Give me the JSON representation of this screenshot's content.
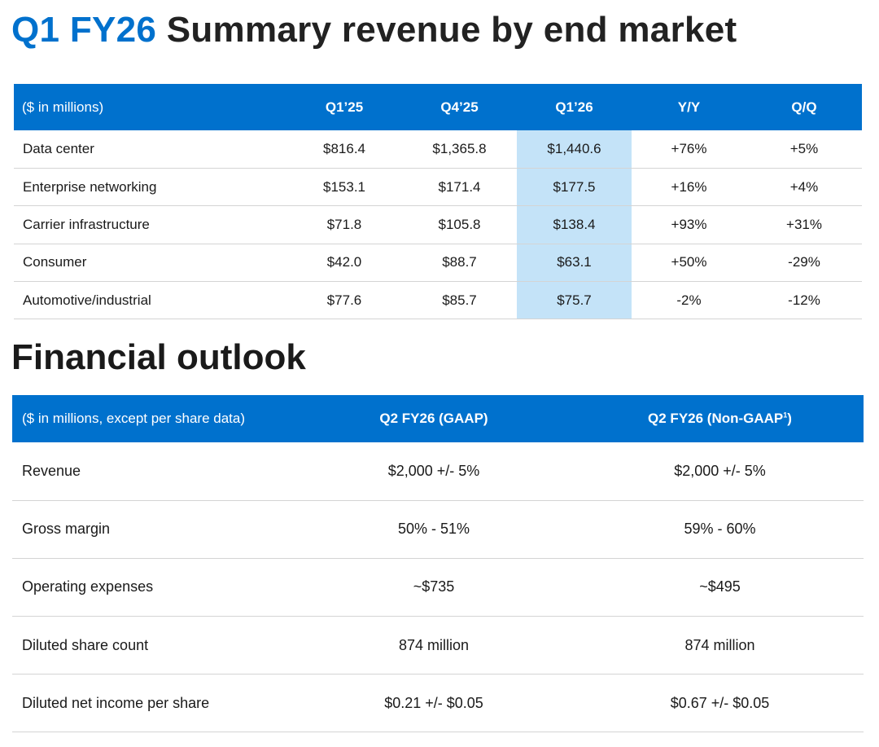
{
  "slide": {
    "title_accent": "Q1 FY26",
    "title_rest": " Summary revenue by end market",
    "outlook_title": "Financial outlook"
  },
  "revenue_table": {
    "headers": [
      "($ in millions)",
      "Q1’25",
      "Q4’25",
      "Q1’26",
      "Y/Y",
      "Q/Q"
    ],
    "rows": [
      [
        "Data center",
        "$816.4",
        "$1,365.8",
        "$1,440.6",
        "+76%",
        "+5%"
      ],
      [
        "Enterprise networking",
        "$153.1",
        "$171.4",
        "$177.5",
        "+16%",
        "+4%"
      ],
      [
        "Carrier infrastructure",
        "$71.8",
        "$105.8",
        "$138.4",
        "+93%",
        "+31%"
      ],
      [
        "Consumer",
        "$42.0",
        "$88.7",
        "$63.1",
        "+50%",
        "-29%"
      ],
      [
        "Automotive/industrial",
        "$77.6",
        "$85.7",
        "$75.7",
        "-2%",
        "-12%"
      ]
    ],
    "highlight_color": "#c4e3f8"
  },
  "outlook_table": {
    "headers": [
      "($ in millions, except per share data)",
      "Q2 FY26 (GAAP)",
      "Q2 FY26 (Non-GAAP"
    ],
    "footnote_marker": "1",
    "header_close": ")",
    "rows": [
      [
        "Revenue",
        "$2,000 +/- 5%",
        "$2,000 +/- 5%"
      ],
      [
        "Gross margin",
        "50% - 51%",
        "59% - 60%"
      ],
      [
        "Operating expenses",
        "~$735",
        "~$495"
      ],
      [
        "Diluted share count",
        "874 million",
        "874 million"
      ],
      [
        "Diluted net income per share",
        "$0.21 +/- $0.05",
        "$0.67 +/- $0.05"
      ]
    ]
  },
  "colors": {
    "accent": "#0071cd",
    "header_bg": "#0071cd",
    "divider": "#d4d4d4"
  }
}
